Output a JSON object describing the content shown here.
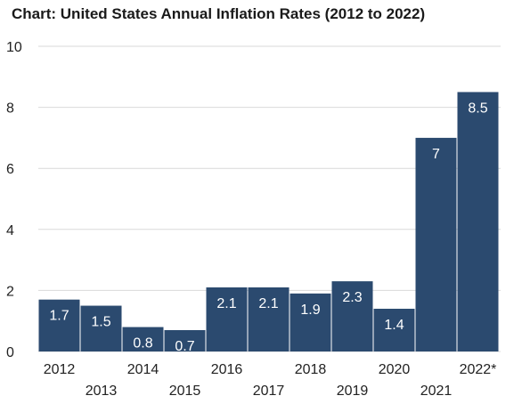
{
  "chart_data": {
    "type": "bar",
    "title": "Chart: United States Annual Inflation Rates (2012 to 2022)",
    "categories": [
      "2012",
      "2013",
      "2014",
      "2015",
      "2016",
      "2017",
      "2018",
      "2019",
      "2020",
      "2021",
      "2022*"
    ],
    "values": [
      1.7,
      1.5,
      0.8,
      0.7,
      2.1,
      2.1,
      1.9,
      2.3,
      1.4,
      7,
      8.5
    ],
    "value_labels": [
      "1.7",
      "1.5",
      "0.8",
      "0.7",
      "2.1",
      "2.1",
      "1.9",
      "2.3",
      "1.4",
      "7",
      "8.5"
    ],
    "y_ticks": [
      0,
      2,
      4,
      6,
      8,
      10
    ],
    "ylim": [
      0,
      10
    ],
    "xlabel": "",
    "ylabel": "",
    "grid": true,
    "colors": {
      "bar": "#2b4a6f",
      "grid": "#d9d9d9",
      "label": "#ffffff",
      "text": "#222222"
    }
  }
}
